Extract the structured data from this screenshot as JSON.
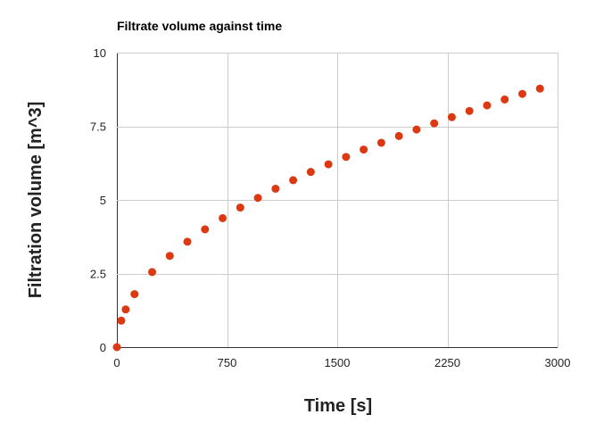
{
  "chart_data": {
    "type": "scatter",
    "title": "Filtrate volume against time",
    "xlabel": "Time [s]",
    "ylabel": "Filtration volume [m^3]",
    "xlim": [
      0,
      3000
    ],
    "ylim": [
      0,
      10
    ],
    "x_ticks": [
      0,
      750,
      1500,
      2250,
      3000
    ],
    "y_ticks": [
      0,
      2.5,
      5,
      7.5,
      10
    ],
    "x_tick_labels": [
      "0",
      "750",
      "1500",
      "2250",
      "3000"
    ],
    "y_tick_labels": [
      "0",
      "2.5",
      "5",
      "7.5",
      "10"
    ],
    "grid": true,
    "marker_color": "#dc3912",
    "points": [
      {
        "x": 0,
        "y": 0.0
      },
      {
        "x": 30,
        "y": 0.9
      },
      {
        "x": 60,
        "y": 1.28
      },
      {
        "x": 120,
        "y": 1.8
      },
      {
        "x": 240,
        "y": 2.55
      },
      {
        "x": 360,
        "y": 3.1
      },
      {
        "x": 480,
        "y": 3.58
      },
      {
        "x": 600,
        "y": 4.0
      },
      {
        "x": 720,
        "y": 4.38
      },
      {
        "x": 840,
        "y": 4.74
      },
      {
        "x": 960,
        "y": 5.07
      },
      {
        "x": 1080,
        "y": 5.38
      },
      {
        "x": 1200,
        "y": 5.67
      },
      {
        "x": 1320,
        "y": 5.95
      },
      {
        "x": 1440,
        "y": 6.21
      },
      {
        "x": 1560,
        "y": 6.46
      },
      {
        "x": 1680,
        "y": 6.71
      },
      {
        "x": 1800,
        "y": 6.94
      },
      {
        "x": 1920,
        "y": 7.17
      },
      {
        "x": 2040,
        "y": 7.39
      },
      {
        "x": 2160,
        "y": 7.6
      },
      {
        "x": 2280,
        "y": 7.81
      },
      {
        "x": 2400,
        "y": 8.02
      },
      {
        "x": 2520,
        "y": 8.21
      },
      {
        "x": 2640,
        "y": 8.41
      },
      {
        "x": 2760,
        "y": 8.6
      },
      {
        "x": 2880,
        "y": 8.78
      }
    ]
  }
}
